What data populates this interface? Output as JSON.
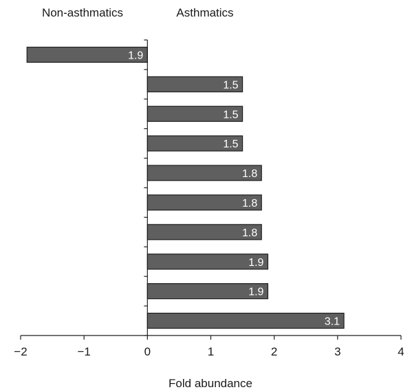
{
  "chart_data": {
    "type": "bar",
    "orientation": "horizontal",
    "headers": {
      "left": "Non-asthmatics",
      "right": "Asthmatics"
    },
    "xlabel": "Fold abundance",
    "xlim": [
      -2,
      4
    ],
    "xticks": [
      -2,
      -1,
      0,
      1,
      2,
      3,
      4
    ],
    "xtick_labels": [
      "−2",
      "−1",
      "0",
      "1",
      "2",
      "3",
      "4"
    ],
    "values": [
      -1.9,
      1.5,
      1.5,
      1.5,
      1.8,
      1.8,
      1.8,
      1.9,
      1.9,
      3.1
    ],
    "labels": [
      "1.9",
      "1.5",
      "1.5",
      "1.5",
      "1.8",
      "1.8",
      "1.8",
      "1.9",
      "1.9",
      "3.1"
    ],
    "bar_color": "#5f5f5f",
    "label_color": "#ffffff",
    "grid": false
  }
}
